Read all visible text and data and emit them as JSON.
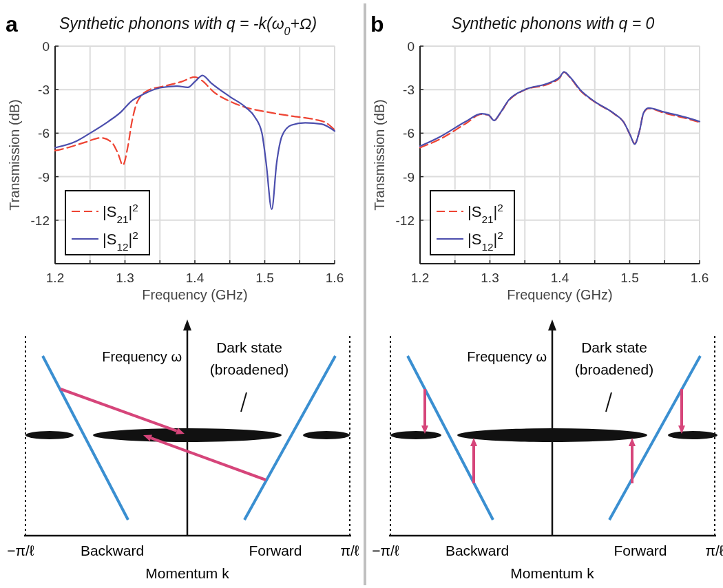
{
  "chart_data": [
    {
      "type": "line",
      "title": "Synthetic phonons with q = -k(ω$_{0}$+Ω)",
      "xlabel": "Frequency (GHz)",
      "ylabel": "Transmission (dB)",
      "xlim": [
        1.2,
        1.6
      ],
      "xticks": [
        1.2,
        {
          "value": 1.25,
          "label": null
        },
        1.3,
        {
          "value": 1.35,
          "label": null
        },
        1.4,
        {
          "value": 1.45,
          "label": null
        },
        1.5,
        {
          "value": 1.55,
          "label": null
        },
        1.6
      ],
      "ylim": [
        -15,
        0
      ],
      "yticks": [
        {
          "value": -15,
          "label": null
        },
        -12,
        -9,
        -6,
        -3,
        0
      ],
      "grid": true,
      "legend": "bottom left",
      "annotations": [
        "a",
        "Frequency ω",
        "Dark state",
        "(broadened)",
        "Backward",
        "Forward",
        "Momentum k",
        "−π/ℓ",
        "π/ℓ"
      ],
      "series": [
        {
          "name": "|S$_{21}$|$^{2}$",
          "color": "#ee4433",
          "line_style": "dashed",
          "x": [
            1.2,
            1.21,
            1.243,
            1.266,
            1.281,
            1.29,
            1.297,
            1.304,
            1.31,
            1.318,
            1.335,
            1.352,
            1.381,
            1.4,
            1.41,
            1.427,
            1.45,
            1.473,
            1.499,
            1.538,
            1.571,
            1.588,
            1.6
          ],
          "values": [
            -7.2,
            -7.1,
            -6.63,
            -6.32,
            -6.63,
            -7.4,
            -8.2,
            -6.95,
            -5.2,
            -3.8,
            -3.0,
            -2.8,
            -2.45,
            -2.13,
            -2.37,
            -3.16,
            -3.8,
            -4.23,
            -4.5,
            -4.82,
            -5.05,
            -5.29,
            -5.77
          ]
        },
        {
          "name": "|S$_{12}$|$^{2}$",
          "color": "#4b4ead",
          "line_style": "solid",
          "x": [
            1.2,
            1.23,
            1.25,
            1.276,
            1.294,
            1.309,
            1.325,
            1.35,
            1.375,
            1.39,
            1.4,
            1.411,
            1.423,
            1.45,
            1.473,
            1.486,
            1.496,
            1.502,
            1.51,
            1.517,
            1.525,
            1.538,
            1.558,
            1.581,
            1.6
          ],
          "values": [
            -7.0,
            -6.56,
            -6.0,
            -5.2,
            -4.55,
            -3.8,
            -3.35,
            -2.87,
            -2.76,
            -2.84,
            -2.45,
            -2.02,
            -2.53,
            -3.48,
            -4.23,
            -4.9,
            -6.0,
            -8.06,
            -11.25,
            -8.06,
            -6.16,
            -5.45,
            -5.29,
            -5.37,
            -5.85
          ]
        }
      ]
    },
    {
      "type": "line",
      "title": "Synthetic phonons with q = 0",
      "xlabel": "Frequency (GHz)",
      "ylabel": "Transmission (dB)",
      "xlim": [
        1.2,
        1.6
      ],
      "xticks": [
        1.2,
        {
          "value": 1.25,
          "label": null
        },
        1.3,
        {
          "value": 1.35,
          "label": null
        },
        1.4,
        {
          "value": 1.45,
          "label": null
        },
        1.5,
        {
          "value": 1.55,
          "label": null
        },
        1.6
      ],
      "ylim": [
        -15,
        0
      ],
      "yticks": [
        {
          "value": -15,
          "label": null
        },
        -12,
        -9,
        -6,
        -3,
        0
      ],
      "grid": true,
      "legend": "bottom left",
      "annotations": [
        "b",
        "Frequency ω",
        "Dark state",
        "(broadened)",
        "Backward",
        "Forward",
        "Momentum k",
        "−π/ℓ",
        "π/ℓ"
      ],
      "series": [
        {
          "name": "|S$_{21}$|$^{2}$",
          "color": "#ee4433",
          "line_style": "dashed",
          "x": [
            1.2,
            1.229,
            1.265,
            1.288,
            1.298,
            1.306,
            1.314,
            1.327,
            1.35,
            1.383,
            1.4,
            1.406,
            1.416,
            1.429,
            1.449,
            1.478,
            1.491,
            1.501,
            1.507,
            1.514,
            1.52,
            1.527,
            1.55,
            1.582,
            1.6
          ],
          "values": [
            -7.0,
            -6.4,
            -5.35,
            -4.7,
            -4.76,
            -5.13,
            -4.68,
            -3.75,
            -3.02,
            -2.62,
            -2.18,
            -1.8,
            -2.25,
            -3.05,
            -3.82,
            -4.68,
            -5.22,
            -6.16,
            -6.72,
            -5.85,
            -4.6,
            -4.3,
            -4.62,
            -5.0,
            -5.25
          ]
        },
        {
          "name": "|S$_{12}$|$^{2}$",
          "color": "#4b4ead",
          "line_style": "solid",
          "x": [
            1.2,
            1.229,
            1.265,
            1.288,
            1.298,
            1.306,
            1.314,
            1.327,
            1.35,
            1.383,
            1.4,
            1.406,
            1.416,
            1.429,
            1.449,
            1.478,
            1.491,
            1.501,
            1.507,
            1.514,
            1.52,
            1.527,
            1.55,
            1.582,
            1.6
          ],
          "values": [
            -6.9,
            -6.24,
            -5.21,
            -4.66,
            -4.74,
            -5.13,
            -4.66,
            -3.71,
            -3.0,
            -2.56,
            -2.13,
            -1.77,
            -2.21,
            -3.0,
            -3.79,
            -4.66,
            -5.21,
            -6.16,
            -6.76,
            -5.85,
            -4.58,
            -4.27,
            -4.55,
            -4.93,
            -5.2
          ]
        }
      ]
    }
  ]
}
